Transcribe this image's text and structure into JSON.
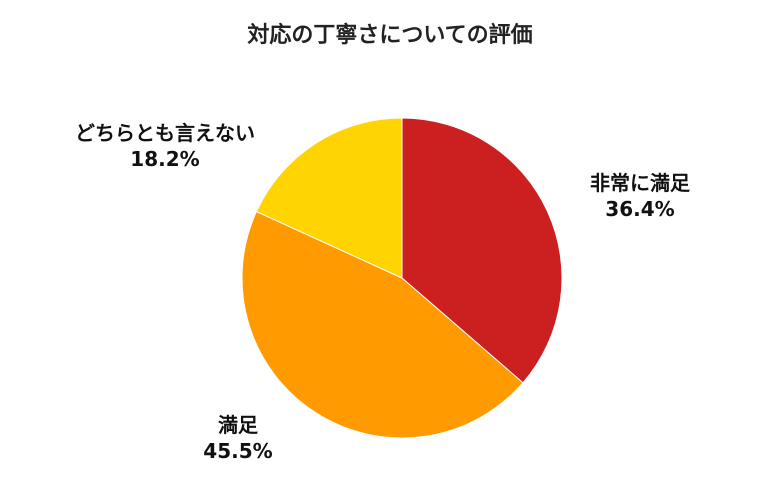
{
  "chart_data": {
    "type": "pie",
    "title": "対応の丁寧さについての評価",
    "slices": [
      {
        "label": "非常に満足",
        "value": 36.4,
        "value_text": "36.4%",
        "color": "#CC1F1F"
      },
      {
        "label": "満足",
        "value": 45.5,
        "value_text": "45.5%",
        "color": "#FF9A00"
      },
      {
        "label": "どちらとも言えない",
        "value": 18.2,
        "value_text": "18.2%",
        "color": "#FFD400"
      }
    ],
    "start": "12 o'clock",
    "direction": "clockwise",
    "legend": "none",
    "labels": "outside"
  }
}
